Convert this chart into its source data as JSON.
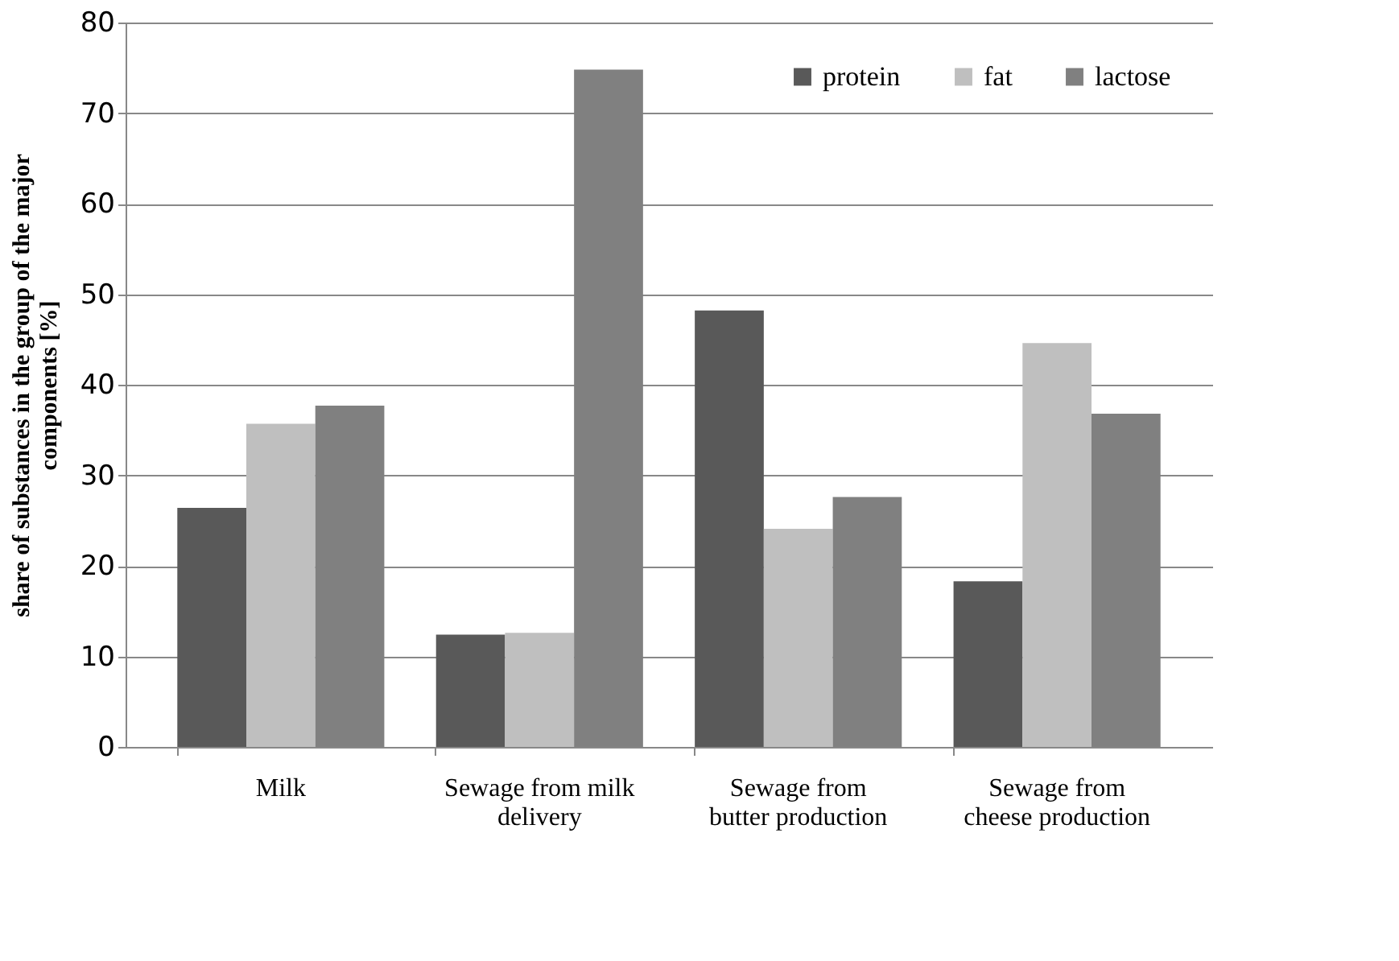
{
  "chart_data": {
    "type": "bar",
    "ylabel": "share of substances in the group of the major components [%]",
    "categories": [
      "Milk",
      "Sewage from milk delivery",
      "Sewage from butter production",
      "Sewage from cheese production"
    ],
    "series": [
      {
        "name": "protein",
        "color": "#595959",
        "values": [
          26.4,
          12.4,
          48.2,
          18.3
        ]
      },
      {
        "name": "fat",
        "color": "#bfbfbf",
        "values": [
          35.7,
          12.6,
          24.1,
          44.6
        ]
      },
      {
        "name": "lactose",
        "color": "#808080",
        "values": [
          37.7,
          74.8,
          27.6,
          36.8
        ]
      }
    ],
    "ylim": [
      0,
      80
    ],
    "yticks": [
      0,
      10,
      20,
      30,
      40,
      50,
      60,
      70,
      80
    ],
    "grid": "y",
    "legend": "top right"
  }
}
